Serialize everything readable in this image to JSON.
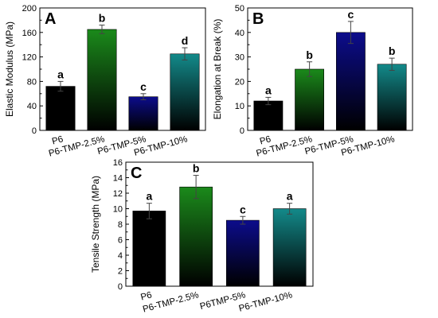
{
  "chart_data": [
    {
      "type": "bar",
      "panel_label": "A",
      "categories": [
        "P6",
        "P6-TMP-2.5%",
        "P6-TMP-5%",
        "P6-TMP-10%"
      ],
      "values": [
        72,
        165,
        55,
        125
      ],
      "errors": [
        8,
        7,
        5,
        10
      ],
      "letters": [
        "a",
        "b",
        "c",
        "d"
      ],
      "colors": [
        "#000000",
        "#1b8a1b",
        "#0c0c8c",
        "#138a8a"
      ],
      "xlabel": "",
      "ylabel": "Elastic Modulus (MPa)",
      "ylim": [
        0,
        200
      ],
      "yticks": [
        0,
        40,
        80,
        120,
        160,
        200
      ]
    },
    {
      "type": "bar",
      "panel_label": "B",
      "categories": [
        "P6",
        "P6-TMP-2.5%",
        "P6-TMP-5%",
        "P6-TMP-10%"
      ],
      "values": [
        12,
        25,
        40,
        27
      ],
      "errors": [
        1.5,
        3,
        4.5,
        2.5
      ],
      "letters": [
        "a",
        "b",
        "c",
        "b"
      ],
      "colors": [
        "#000000",
        "#1b8a1b",
        "#0c0c8c",
        "#138a8a"
      ],
      "xlabel": "",
      "ylabel": "Elongation at Break (%)",
      "ylim": [
        0,
        50
      ],
      "yticks": [
        0,
        10,
        20,
        30,
        40,
        50
      ]
    },
    {
      "type": "bar",
      "panel_label": "C",
      "categories": [
        "P6",
        "P6-TMP-2.5%",
        "P6TMP-5%",
        "P6-TMP-10%"
      ],
      "values": [
        9.7,
        12.8,
        8.5,
        10.0
      ],
      "errors": [
        1.0,
        1.5,
        0.5,
        0.7
      ],
      "letters": [
        "a",
        "b",
        "c",
        "a"
      ],
      "colors": [
        "#000000",
        "#1b8a1b",
        "#0c0c8c",
        "#138a8a"
      ],
      "xlabel": "",
      "ylabel": "Tensile Strength (MPa)",
      "ylim": [
        0,
        16
      ],
      "yticks": [
        0,
        2,
        4,
        6,
        8,
        10,
        12,
        14,
        16
      ]
    }
  ]
}
